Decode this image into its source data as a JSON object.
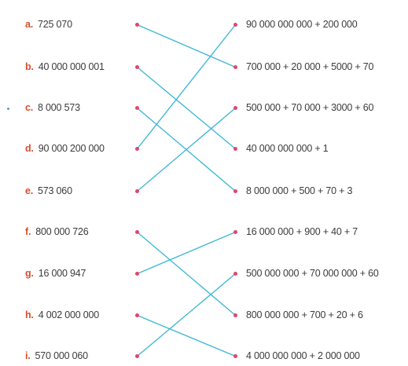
{
  "left_items": [
    {
      "letter": "a.",
      "value": "725 070"
    },
    {
      "letter": "b.",
      "value": "40 000 000 001"
    },
    {
      "letter": "c.",
      "value": "8 000 573"
    },
    {
      "letter": "d.",
      "value": "90 000 200 000"
    },
    {
      "letter": "e.",
      "value": "573 060"
    },
    {
      "letter": "f.",
      "value": "800 000 726"
    },
    {
      "letter": "g.",
      "value": "16 000 947"
    },
    {
      "letter": "h.",
      "value": "4 002 000 000"
    },
    {
      "letter": "i.",
      "value": "570 000 060"
    }
  ],
  "right_items": [
    "90 000 000 000 + 200 000",
    "700 000 + 20 000 + 5000 + 70",
    "500 000 + 70 000 + 3000 + 60",
    "40 000 000 000 + 1",
    "8 000 000 + 500 + 70 + 3",
    "16 000 000 + 900 + 40 + 7",
    "500 000 000 + 70 000 000 + 60",
    "800 000 000 + 700 + 20 + 6",
    "4 000 000 000 + 2 000 000"
  ],
  "matches": [
    [
      0,
      1
    ],
    [
      1,
      3
    ],
    [
      2,
      4
    ],
    [
      3,
      0
    ],
    [
      4,
      2
    ],
    [
      5,
      7
    ],
    [
      6,
      5
    ],
    [
      7,
      8
    ],
    [
      8,
      6
    ]
  ],
  "colors": {
    "letter": "#d64f2c",
    "text": "#3b3b3b",
    "dot": "#e0476b",
    "line": "#3fb8d6"
  }
}
